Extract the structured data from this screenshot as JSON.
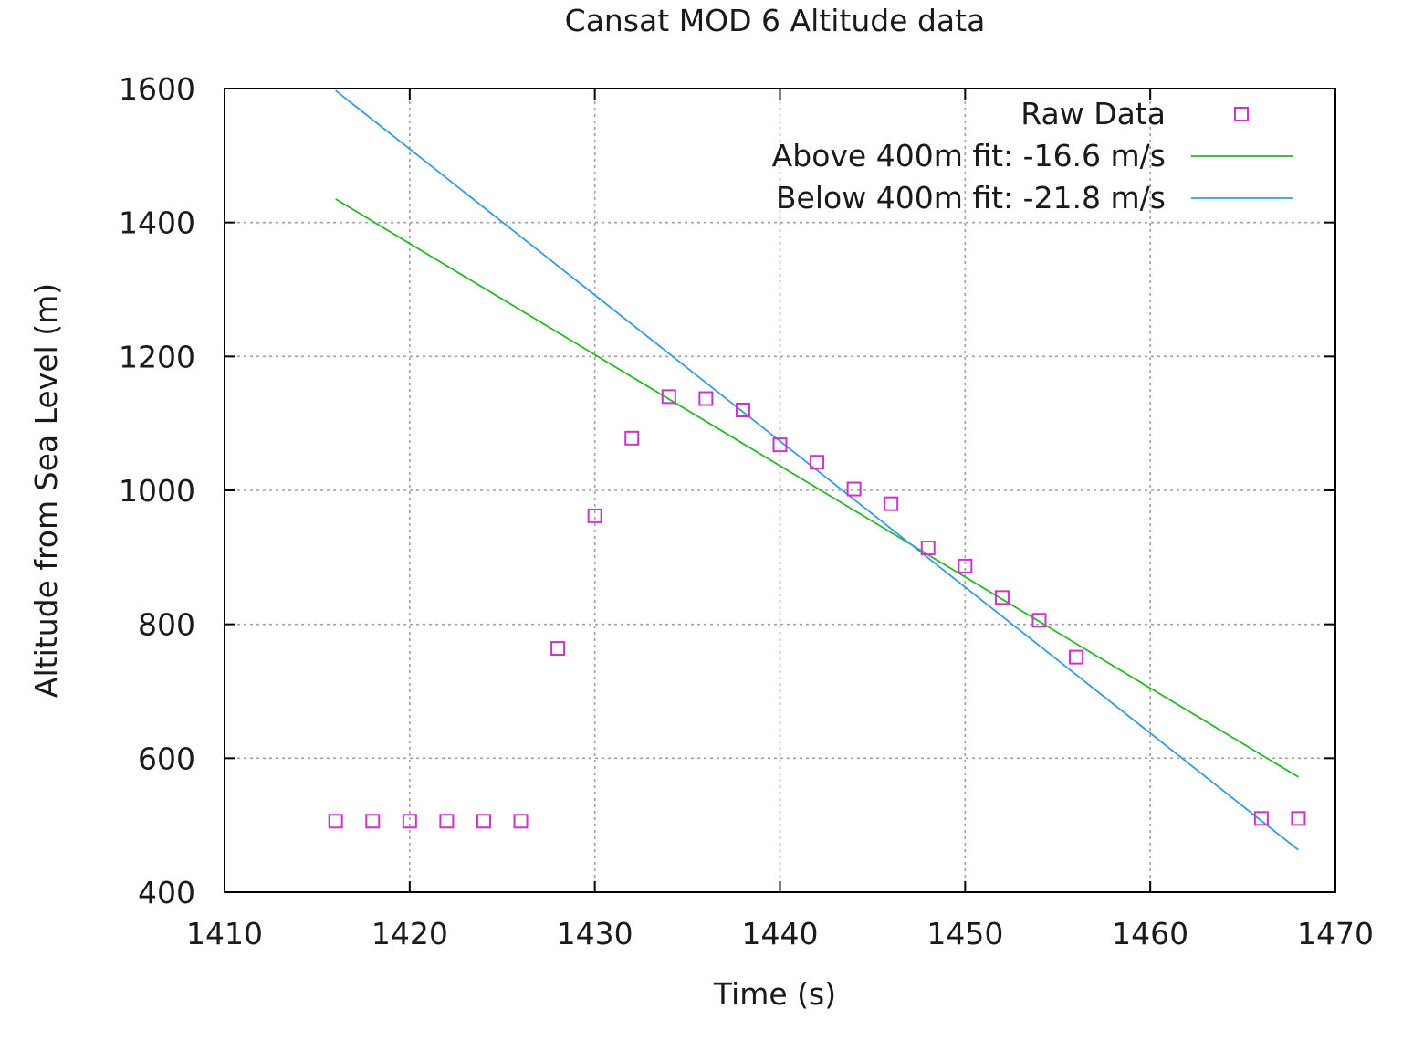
{
  "chart_data": {
    "type": "scatter",
    "title": "Cansat MOD 6 Altitude data",
    "xlabel": "Time (s)",
    "ylabel": "Altitude from Sea Level (m)",
    "xlim": [
      1410,
      1470
    ],
    "ylim": [
      400,
      1600
    ],
    "xticks": [
      1410,
      1420,
      1430,
      1440,
      1450,
      1460,
      1470
    ],
    "yticks": [
      400,
      600,
      800,
      1000,
      1200,
      1400,
      1600
    ],
    "grid": true,
    "legend_position": "top-right",
    "series": [
      {
        "name": "Raw Data",
        "kind": "points",
        "marker": "open-square",
        "color": "#cc33cc",
        "points": [
          [
            1416,
            506
          ],
          [
            1418,
            506
          ],
          [
            1420,
            506
          ],
          [
            1422,
            506
          ],
          [
            1424,
            506
          ],
          [
            1426,
            506
          ],
          [
            1428,
            764
          ],
          [
            1430,
            962
          ],
          [
            1432,
            1078
          ],
          [
            1434,
            1140
          ],
          [
            1436,
            1137
          ],
          [
            1438,
            1120
          ],
          [
            1440,
            1068
          ],
          [
            1442,
            1042
          ],
          [
            1444,
            1002
          ],
          [
            1446,
            980
          ],
          [
            1448,
            914
          ],
          [
            1450,
            887
          ],
          [
            1452,
            840
          ],
          [
            1454,
            806
          ],
          [
            1456,
            751
          ],
          [
            1466,
            510
          ],
          [
            1468,
            510
          ]
        ]
      },
      {
        "name": "Above 400m fit: -16.6 m/s",
        "kind": "line",
        "color": "#22bb22",
        "points": [
          [
            1416,
            1435
          ],
          [
            1468,
            572
          ]
        ]
      },
      {
        "name": "Below 400m fit: -21.8 m/s",
        "kind": "line",
        "color": "#3399ee",
        "points": [
          [
            1416,
            1597
          ],
          [
            1468,
            463
          ]
        ]
      }
    ]
  }
}
